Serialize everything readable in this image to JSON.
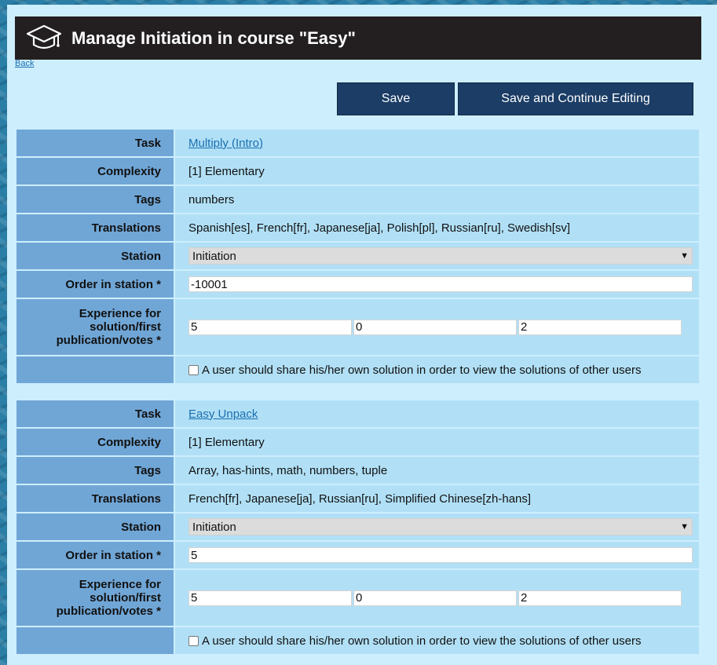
{
  "header": {
    "title": "Manage Initiation in course \"Easy\"",
    "icon": "graduation-cap-icon"
  },
  "nav": {
    "back_label": "Back"
  },
  "toolbar": {
    "save_label": "Save",
    "save_continue_label": "Save and Continue Editing"
  },
  "labels": {
    "task": "Task",
    "complexity": "Complexity",
    "tags": "Tags",
    "translations": "Translations",
    "station": "Station",
    "order": "Order in station *",
    "experience_1": "Experience for",
    "experience_2": "solution/first",
    "experience_3": "publication/votes *",
    "share_checkbox": "A user should share his/her own solution in order to view the solutions of other users"
  },
  "tasks": [
    {
      "task": "Multiply (Intro)",
      "complexity": "[1] Elementary",
      "tags": "numbers",
      "translations": "Spanish[es], French[fr], Japanese[ja], Polish[pl], Russian[ru], Swedish[sv]",
      "station": "Initiation",
      "order": "-10001",
      "exp_solution": "5",
      "exp_publication": "0",
      "exp_votes": "2",
      "share_checked": false
    },
    {
      "task": "Easy Unpack",
      "complexity": "[1] Elementary",
      "tags": "Array, has-hints, math, numbers, tuple",
      "translations": "French[fr], Japanese[ja], Russian[ru], Simplified Chinese[zh-hans]",
      "station": "Initiation",
      "order": "5",
      "exp_solution": "5",
      "exp_publication": "0",
      "exp_votes": "2",
      "share_checked": false
    }
  ]
}
